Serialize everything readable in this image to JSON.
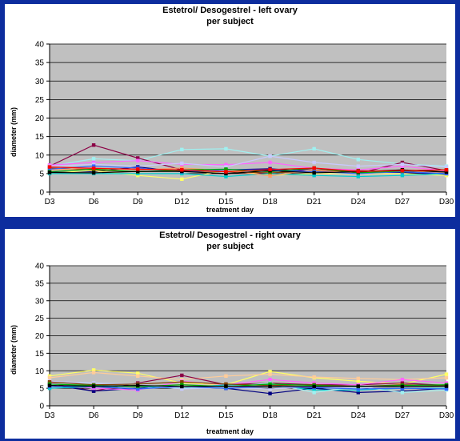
{
  "chart_data": [
    {
      "type": "line",
      "title": "Estetrol/ Desogestrel - left ovary",
      "subtitle": "per subject",
      "xlabel": "treatment day",
      "ylabel": "diameter (mm)",
      "ylim": [
        0,
        40
      ],
      "yticks": [
        0,
        5,
        10,
        15,
        20,
        25,
        30,
        35,
        40
      ],
      "grid": true,
      "categories": [
        "D3",
        "D6",
        "D9",
        "D12",
        "D15",
        "D18",
        "D21",
        "D24",
        "D27",
        "D30"
      ],
      "series": [
        {
          "color": "#a0f0f0",
          "values": [
            7,
            9,
            8.5,
            11.5,
            11.7,
            9.7,
            11.7,
            8.8,
            7.6,
            7
          ]
        },
        {
          "color": "#8b0045",
          "values": [
            7,
            12.7,
            9.2,
            6,
            5.5,
            5,
            6.4,
            5,
            8,
            5.8
          ]
        },
        {
          "color": "#ff66ff",
          "values": [
            7.3,
            8,
            8.5,
            7.5,
            7.4,
            8,
            6.4,
            6,
            7,
            5.7
          ]
        },
        {
          "color": "#c9c9ff",
          "values": [
            7,
            7.5,
            7,
            7.8,
            6.8,
            9.7,
            8,
            7,
            7.5,
            6.8
          ]
        },
        {
          "color": "#000080",
          "values": [
            5.5,
            5.5,
            6.8,
            5.5,
            6,
            6.3,
            5.5,
            5.3,
            5.3,
            4.8
          ]
        },
        {
          "color": "#ffff66",
          "values": [
            5.2,
            5.8,
            4.5,
            3.5,
            6,
            4.5,
            5,
            5,
            5,
            4.5
          ]
        },
        {
          "color": "#00cccc",
          "values": [
            5,
            5,
            5,
            5,
            4.2,
            5,
            4.5,
            4.2,
            4.5,
            5
          ]
        },
        {
          "color": "#804000",
          "values": [
            6.5,
            6,
            5.5,
            5.8,
            5.5,
            5.2,
            5.6,
            5.8,
            5.5,
            5.5
          ]
        },
        {
          "color": "#ff9966",
          "values": [
            6,
            6.5,
            6,
            6.5,
            5.8,
            4.4,
            6,
            5,
            6,
            5
          ]
        },
        {
          "color": "#3366ff",
          "values": [
            6.2,
            7,
            6.5,
            5.5,
            6,
            6,
            5.5,
            5,
            5.5,
            5
          ]
        },
        {
          "color": "#00aa00",
          "values": [
            5.5,
            6.2,
            5.5,
            6,
            6.2,
            5.5,
            6.5,
            5.2,
            5.7,
            6
          ]
        },
        {
          "color": "#000000",
          "values": [
            5.3,
            5.2,
            5.6,
            5.6,
            5,
            5.8,
            5.2,
            5.5,
            6,
            5.4
          ]
        },
        {
          "color": "#ff0000",
          "values": [
            6.8,
            6.4,
            6.2,
            6,
            5.5,
            6.1,
            6.5,
            5.6,
            5.8,
            6
          ]
        }
      ]
    },
    {
      "type": "line",
      "title": "Estetrol/ Desogestrel - right ovary",
      "subtitle": "per subject",
      "xlabel": "treatment day",
      "ylabel": "diameter (mm)",
      "ylim": [
        0,
        40
      ],
      "yticks": [
        0,
        5,
        10,
        15,
        20,
        25,
        30,
        35,
        40
      ],
      "grid": true,
      "categories": [
        "D3",
        "D6",
        "D9",
        "D12",
        "D15",
        "D18",
        "D21",
        "D24",
        "D27",
        "D30"
      ],
      "series": [
        {
          "color": "#ffff66",
          "values": [
            8.5,
            10.2,
            9.3,
            6.5,
            6,
            9.8,
            8,
            7,
            6.2,
            9
          ]
        },
        {
          "color": "#ffcc99",
          "values": [
            8,
            9.5,
            8.5,
            7.5,
            8.5,
            9,
            8.2,
            7.8,
            7.5,
            8
          ]
        },
        {
          "color": "#8b0045",
          "values": [
            6.5,
            4.2,
            6.5,
            8.7,
            6,
            6.5,
            6,
            6,
            6.5,
            5.8
          ]
        },
        {
          "color": "#000080",
          "values": [
            6,
            4.2,
            5,
            5.5,
            5,
            3.5,
            5,
            3.8,
            4.2,
            5
          ]
        },
        {
          "color": "#ff66ff",
          "values": [
            6.5,
            5,
            4.5,
            7,
            6,
            7.5,
            6.5,
            6,
            7.5,
            6.5
          ]
        },
        {
          "color": "#00cccc",
          "values": [
            5,
            5.5,
            5.5,
            5,
            6,
            6,
            4.5,
            4.5,
            5,
            5
          ]
        },
        {
          "color": "#a0f0f0",
          "values": [
            6,
            6.5,
            6,
            5,
            5.5,
            6.5,
            3.8,
            5.5,
            3.8,
            4.5
          ]
        },
        {
          "color": "#c9c9ff",
          "values": [
            7,
            6.5,
            6.2,
            4.8,
            5.2,
            4.8,
            5.5,
            5,
            5.8,
            5.5
          ]
        },
        {
          "color": "#804000",
          "values": [
            6.8,
            6,
            6.2,
            6.8,
            6.2,
            5.8,
            6,
            5.5,
            6,
            5.8
          ]
        },
        {
          "color": "#3366ff",
          "values": [
            5.5,
            5.5,
            4.8,
            5.5,
            5,
            5.5,
            5.2,
            4.8,
            5,
            4.8
          ]
        },
        {
          "color": "#00aa00",
          "values": [
            6.2,
            5.8,
            5.5,
            6,
            5.5,
            6.2,
            5.8,
            5.5,
            5.8,
            6
          ]
        },
        {
          "color": "#000000",
          "values": [
            5.8,
            5.6,
            5.8,
            5.5,
            5.6,
            5.5,
            5.5,
            5.6,
            5.5,
            5.6
          ]
        }
      ]
    }
  ]
}
